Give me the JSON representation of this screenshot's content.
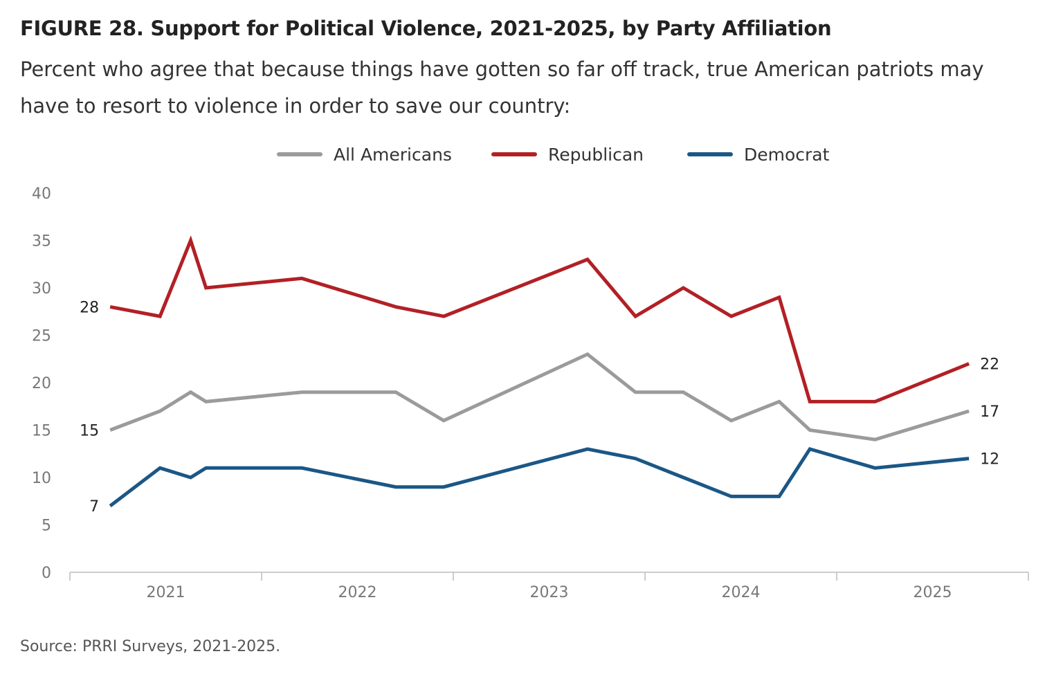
{
  "title": "FIGURE 28.  Support for Political Violence,  2021-2025, by Party Affiliation",
  "subtitle": "Percent who agree that because things have gotten so far off track, true American patriots may have to resort to violence in order to save our country:",
  "source": "Source: PRRI Surveys, 2021-2025.",
  "chart_data": {
    "type": "line",
    "title": "Support for Political Violence, 2021-2025, by Party Affiliation",
    "xlabel": "",
    "ylabel": "",
    "xlim": [
      2021,
      2026
    ],
    "ylim": [
      0,
      40
    ],
    "yticks": [
      0,
      5,
      10,
      15,
      20,
      25,
      30,
      35,
      40
    ],
    "xtick_labels": [
      "2021",
      "2022",
      "2023",
      "2024",
      "2025"
    ],
    "legend_position": "top-center",
    "grid": false,
    "x": [
      2021.21,
      2021.47,
      2021.63,
      2021.71,
      2022.21,
      2022.7,
      2022.95,
      2023.7,
      2023.95,
      2024.2,
      2024.45,
      2024.7,
      2024.86,
      2025.2,
      2025.69
    ],
    "series": [
      {
        "name": "All Americans",
        "color": "#9b9b9b",
        "values": [
          15,
          17,
          19,
          18,
          19,
          19,
          16,
          23,
          19,
          19,
          16,
          18,
          15,
          14,
          17
        ]
      },
      {
        "name": "Republican",
        "color": "#b22025",
        "values": [
          28,
          27,
          35,
          30,
          31,
          28,
          27,
          33,
          27,
          30,
          27,
          29,
          18,
          18,
          22
        ]
      },
      {
        "name": "Democrat",
        "color": "#1b5786",
        "values": [
          7,
          11,
          10,
          11,
          11,
          9,
          9,
          13,
          12,
          10,
          8,
          8,
          13,
          11,
          12
        ]
      }
    ],
    "end_labels": {
      "start": [
        "15",
        "28",
        "7"
      ],
      "end": [
        "17",
        "22",
        "12"
      ]
    }
  }
}
